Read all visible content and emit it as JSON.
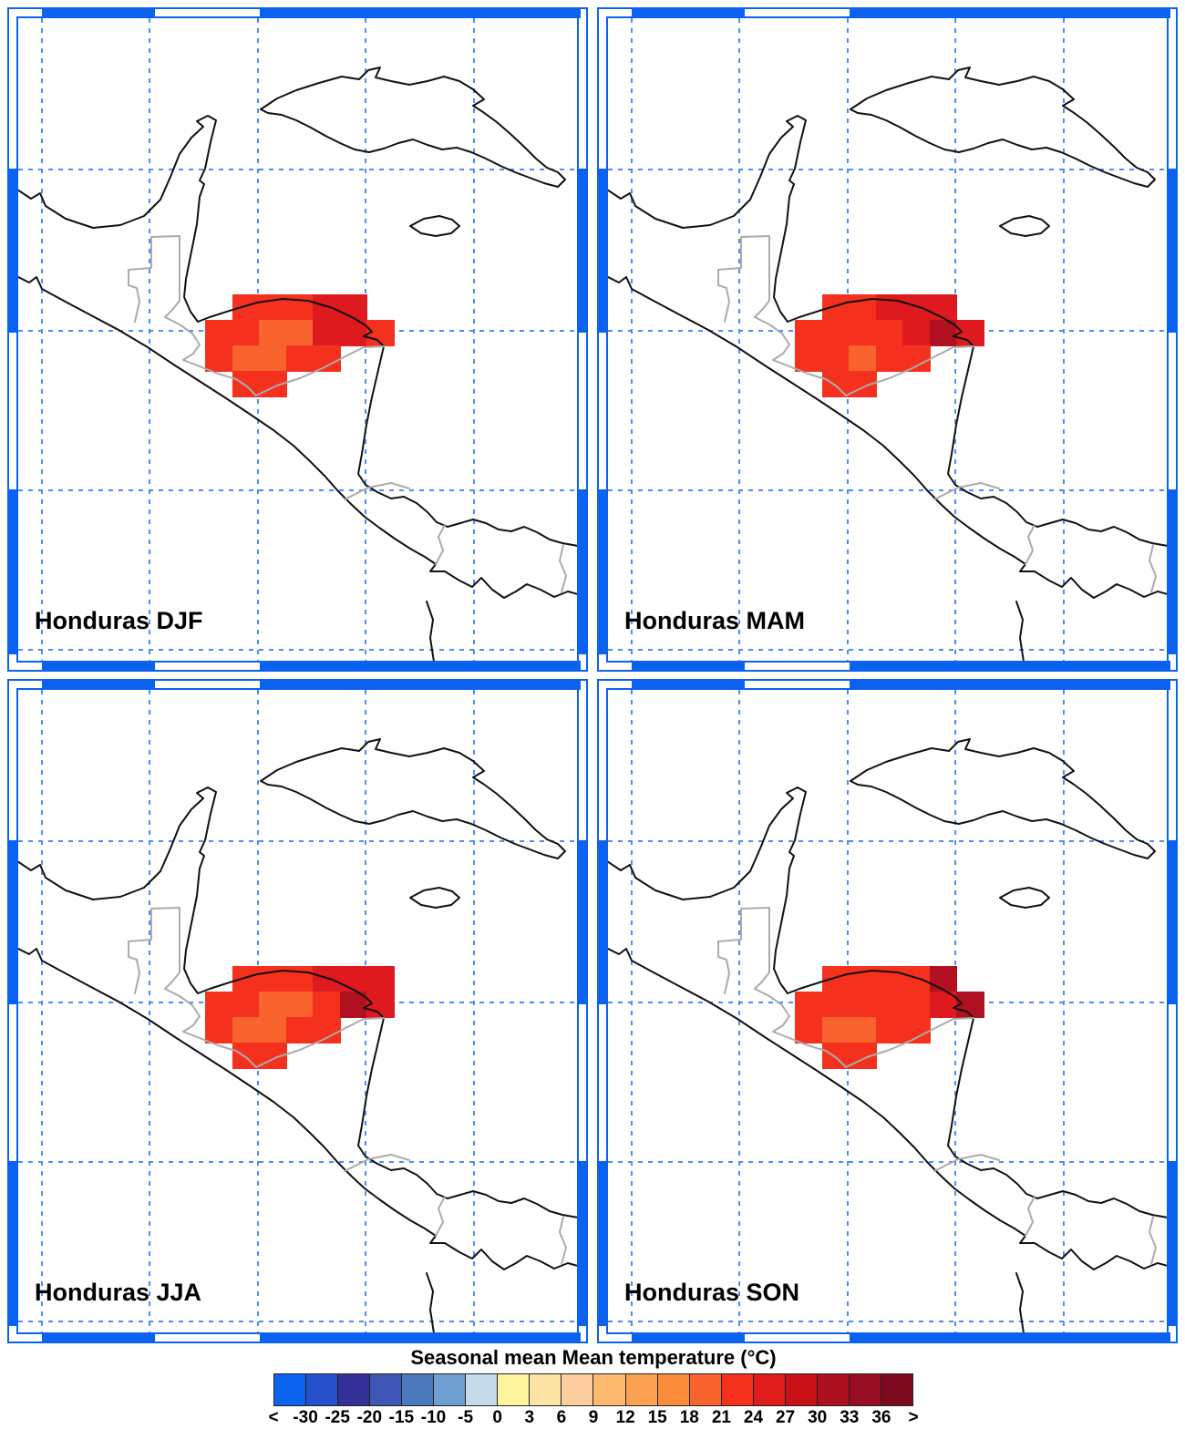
{
  "figure": {
    "region": "Honduras",
    "frame_color": "#0B62F0",
    "gridline_color": "#4C8DF8",
    "coastline_color": "#111111",
    "country_border_color": "#ABABAB",
    "panels": [
      {
        "id": "djf",
        "title": "Honduras DJF",
        "grid": [
          [
            0,
            2,
            2,
            2,
            3,
            3,
            0
          ],
          [
            2,
            2,
            1,
            1,
            3,
            3,
            2
          ],
          [
            2,
            1,
            1,
            2,
            2,
            0,
            0
          ],
          [
            0,
            2,
            2,
            0,
            0,
            0,
            0
          ]
        ]
      },
      {
        "id": "mam",
        "title": "Honduras MAM",
        "grid": [
          [
            0,
            2,
            2,
            3,
            3,
            3,
            0
          ],
          [
            2,
            2,
            2,
            2,
            3,
            4,
            3
          ],
          [
            2,
            2,
            1,
            2,
            2,
            0,
            0
          ],
          [
            0,
            2,
            2,
            0,
            0,
            0,
            0
          ]
        ]
      },
      {
        "id": "jja",
        "title": "Honduras JJA",
        "grid": [
          [
            0,
            2,
            2,
            2,
            3,
            3,
            3
          ],
          [
            2,
            2,
            1,
            1,
            2,
            4,
            3
          ],
          [
            2,
            1,
            1,
            2,
            2,
            0,
            0
          ],
          [
            0,
            2,
            2,
            0,
            0,
            0,
            0
          ]
        ]
      },
      {
        "id": "son",
        "title": "Honduras SON",
        "grid": [
          [
            0,
            2,
            2,
            2,
            2,
            4,
            0
          ],
          [
            2,
            2,
            2,
            2,
            2,
            3,
            4
          ],
          [
            2,
            1,
            1,
            2,
            2,
            0,
            0
          ],
          [
            0,
            2,
            2,
            0,
            0,
            0,
            0
          ]
        ]
      }
    ],
    "cell_colors": {
      "1": "#F8632E",
      "2": "#F5301D",
      "3": "#DE1A1E",
      "4": "#B01020"
    },
    "cell_value_bins": {
      "1": "18-21",
      "2": "21-24",
      "3": "24-27",
      "4": "27-30"
    },
    "colorbar": {
      "title": "Seasonal mean Mean temperature (°C)",
      "labels": [
        "<",
        "-30",
        "-25",
        "-20",
        "-15",
        "-10",
        "-5",
        "0",
        "3",
        "6",
        "9",
        "12",
        "15",
        "18",
        "21",
        "24",
        "27",
        "30",
        "33",
        "36",
        ">"
      ],
      "colors": [
        "#0B64F0",
        "#2551CC",
        "#343097",
        "#3E56B5",
        "#4C78BE",
        "#6F9FD0",
        "#C6DBEC",
        "#FCF49B",
        "#FDE3A3",
        "#FCCE9E",
        "#FDB96D",
        "#FCA052",
        "#FB8C3C",
        "#F8632E",
        "#F5301D",
        "#E01B1C",
        "#C91017",
        "#AF101F",
        "#990D22",
        "#7E0A20"
      ]
    }
  }
}
